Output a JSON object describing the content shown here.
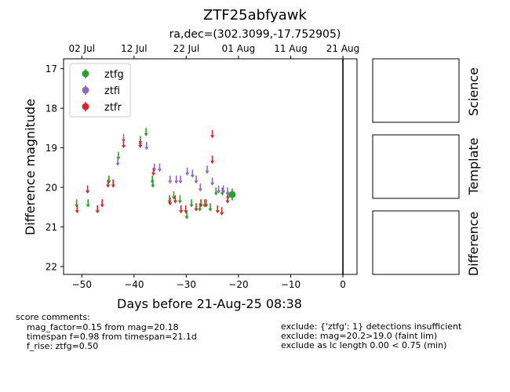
{
  "chart_data": {
    "type": "scatter",
    "title": "ZTF25abfyawk",
    "subtitle": "ra,dec=(302.3099,-17.752905)",
    "xlabel": "Days before 21-Aug-25 08:38",
    "ylabel": "Difference magnitude",
    "xlim": [
      -53.5,
      2.7
    ],
    "ylim": [
      22.2,
      16.75
    ],
    "y_inverted": true,
    "x_ticks": [
      -50,
      -40,
      -30,
      -20,
      -10,
      0
    ],
    "y_ticks": [
      17,
      18,
      19,
      20,
      21,
      22
    ],
    "top_axis_ticks": [
      {
        "label": "02 Jul",
        "x": -50
      },
      {
        "label": "12 Jul",
        "x": -40
      },
      {
        "label": "22 Jul",
        "x": -30
      },
      {
        "label": "01 Aug",
        "x": -20
      },
      {
        "label": "11 Aug",
        "x": -10
      },
      {
        "label": "21 Aug",
        "x": 0
      }
    ],
    "reference_line_x": 0,
    "legend_position": "upper-left",
    "grid": false,
    "series": [
      {
        "name": "ztfg",
        "color": "#2ca02c",
        "upper_limits": [
          [
            -51.0,
            20.4
          ],
          [
            -48.8,
            20.4
          ],
          [
            -44.8,
            19.8
          ],
          [
            -43.0,
            19.2
          ],
          [
            -38.8,
            18.8
          ],
          [
            -37.7,
            18.6
          ],
          [
            -36.5,
            19.8
          ],
          [
            -36.4,
            19.9
          ],
          [
            -33.2,
            20.3
          ],
          [
            -32.4,
            20.2
          ],
          [
            -31.2,
            20.3
          ],
          [
            -29.9,
            20.7
          ],
          [
            -29.0,
            20.4
          ],
          [
            -27.4,
            20.5
          ],
          [
            -26.5,
            20.4
          ],
          [
            -25.4,
            20.5
          ],
          [
            -24.3,
            20.1
          ],
          [
            -23.1,
            20.1
          ],
          [
            -22.0,
            20.2
          ]
        ],
        "detections": [
          {
            "x": -21.2,
            "y": 20.18,
            "err": 0.15
          }
        ]
      },
      {
        "name": "ztfi",
        "color": "#9467bd",
        "upper_limits": [
          [
            -43.1,
            19.35
          ],
          [
            -42.0,
            18.75
          ],
          [
            -38.8,
            18.85
          ],
          [
            -37.6,
            18.95
          ],
          [
            -36.1,
            19.5
          ],
          [
            -35.1,
            19.5
          ],
          [
            -33.1,
            19.8
          ],
          [
            -31.9,
            19.8
          ],
          [
            -31.1,
            19.8
          ],
          [
            -29.8,
            19.6
          ],
          [
            -28.8,
            19.65
          ],
          [
            -28.1,
            19.8
          ],
          [
            -27.3,
            20.0
          ],
          [
            -26.0,
            19.55
          ],
          [
            -25.0,
            19.85
          ],
          [
            -23.8,
            20.05
          ],
          [
            -22.9,
            20.05
          ],
          [
            -22.1,
            20.1
          ]
        ],
        "detections": []
      },
      {
        "name": "ztfr",
        "color": "#d62728",
        "upper_limits": [
          [
            -50.9,
            20.55
          ],
          [
            -48.9,
            20.05
          ],
          [
            -47.0,
            20.55
          ],
          [
            -46.1,
            20.4
          ],
          [
            -45.0,
            19.9
          ],
          [
            -44.0,
            19.9
          ],
          [
            -42.0,
            18.9
          ],
          [
            -38.8,
            18.9
          ],
          [
            -36.3,
            19.6
          ],
          [
            -33.1,
            20.35
          ],
          [
            -32.1,
            20.3
          ],
          [
            -31.0,
            20.55
          ],
          [
            -30.1,
            20.55
          ],
          [
            -28.1,
            20.5
          ],
          [
            -27.2,
            20.4
          ],
          [
            -26.2,
            20.4
          ],
          [
            -25.0,
            18.65
          ],
          [
            -25.0,
            19.3
          ],
          [
            -24.0,
            20.55
          ],
          [
            -23.2,
            20.6
          ],
          [
            -22.1,
            20.3
          ]
        ],
        "detections": []
      }
    ]
  },
  "side_panels": [
    "Science",
    "Template",
    "Difference"
  ],
  "comments": {
    "left": [
      "score comments:",
      "    mag_factor=0.15 from mag=20.18",
      "    timespan f=0.98 from timespan=21.1d",
      "    f_rise: ztfg=0.50"
    ],
    "right": [
      "exclude: {'ztfg': 1} detections insufficient",
      "exclude: mag=20.2>19.0 (faint lim)",
      "exclude as lc length 0.00 < 0.75 (min)"
    ]
  }
}
